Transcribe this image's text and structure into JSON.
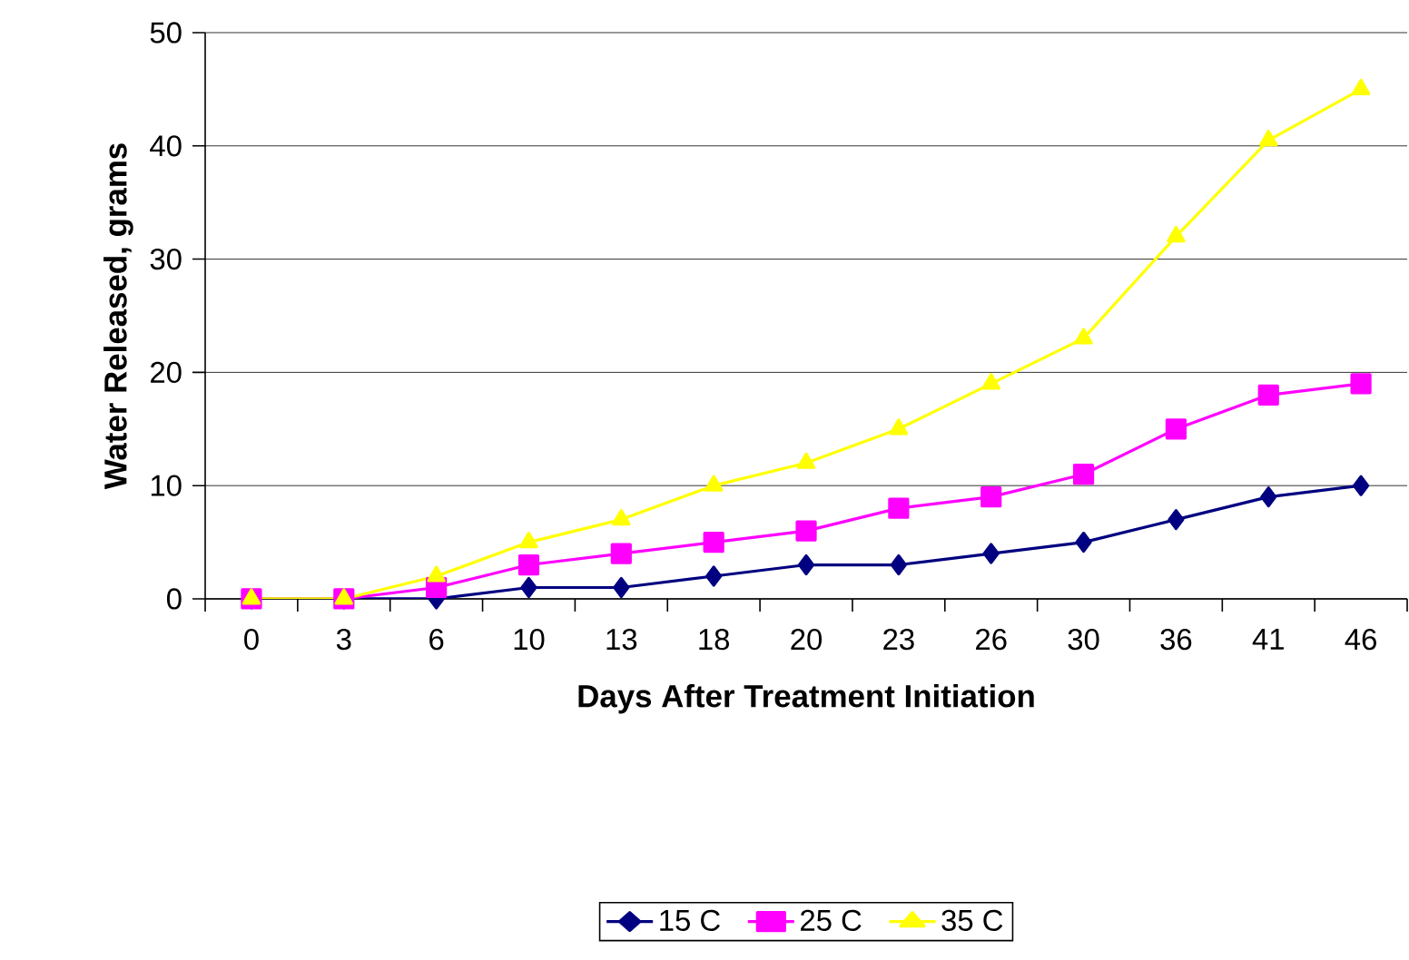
{
  "chart_data": {
    "type": "line",
    "xlabel": "Days After Treatment Initiation",
    "ylabel": "Water Released, grams",
    "categories": [
      "0",
      "3",
      "6",
      "10",
      "13",
      "18",
      "20",
      "23",
      "26",
      "30",
      "36",
      "41",
      "46"
    ],
    "series": [
      {
        "name": "15 C",
        "color": "#000080",
        "marker": "diamond",
        "values": [
          0,
          0,
          0,
          1,
          1,
          2,
          3,
          3,
          4,
          5,
          7,
          9,
          10
        ]
      },
      {
        "name": "25 C",
        "color": "#ff00ff",
        "marker": "square",
        "values": [
          0,
          0,
          1,
          3,
          4,
          5,
          6,
          8,
          9,
          11,
          15,
          18,
          19
        ]
      },
      {
        "name": "35 C",
        "color": "#ffff00",
        "marker": "triangle",
        "values": [
          0,
          0,
          2,
          5,
          7,
          10,
          12,
          15,
          19,
          23,
          32,
          40.5,
          45
        ]
      }
    ],
    "ylim": [
      0,
      50
    ],
    "yticks": [
      0,
      10,
      20,
      30,
      40,
      50
    ],
    "grid": "y",
    "legend": "bottom"
  }
}
